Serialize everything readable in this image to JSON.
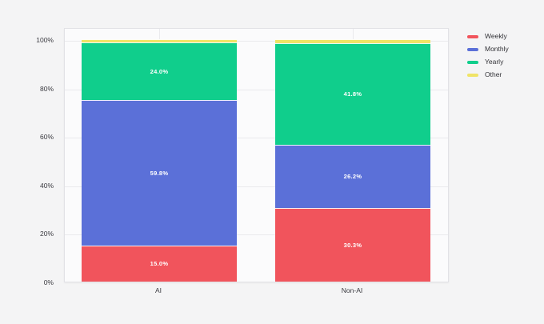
{
  "page": {
    "background_color": "#F4F4F5",
    "plot_background_color": "#FBFBFC"
  },
  "chart_data": {
    "type": "bar",
    "stacked": true,
    "normalized": "percent",
    "title": "",
    "xlabel": "",
    "ylabel": "",
    "categories": [
      "AI",
      "Non-AI"
    ],
    "series": [
      {
        "name": "Weekly",
        "color": "#F1545C",
        "values": [
          15.0,
          30.3
        ],
        "labels": [
          "15.0%",
          "30.3%"
        ]
      },
      {
        "name": "Monthly",
        "color": "#5B70D8",
        "values": [
          59.8,
          26.2
        ],
        "labels": [
          "59.8%",
          "26.2%"
        ]
      },
      {
        "name": "Yearly",
        "color": "#10CE8C",
        "values": [
          24.0,
          41.8
        ],
        "labels": [
          "24.0%",
          "41.8%"
        ]
      },
      {
        "name": "Other",
        "color": "#F0E467",
        "values": [
          1.2,
          1.7
        ],
        "labels": [
          "",
          ""
        ]
      }
    ],
    "ytick_labels": [
      "0%",
      "20%",
      "40%",
      "60%",
      "80%",
      "100%"
    ],
    "ytick_values": [
      0,
      20,
      40,
      60,
      80,
      100
    ],
    "ylim": [
      0,
      105
    ],
    "grid": true,
    "legend_position": "top-right"
  },
  "legend": {
    "items": [
      {
        "label": "Weekly",
        "color": "#F1545C"
      },
      {
        "label": "Monthly",
        "color": "#5B70D8"
      },
      {
        "label": "Yearly",
        "color": "#10CE8C"
      },
      {
        "label": "Other",
        "color": "#F0E467"
      }
    ]
  }
}
